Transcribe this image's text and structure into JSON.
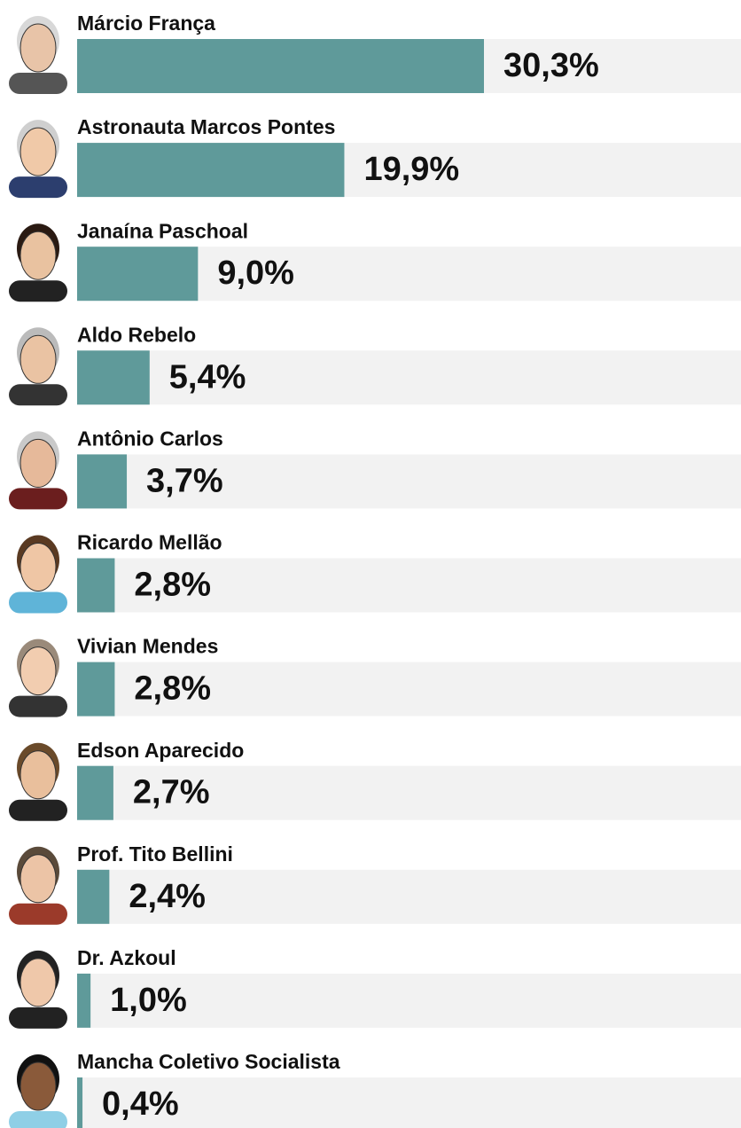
{
  "chart_data": {
    "type": "bar",
    "orientation": "horizontal",
    "categories": [
      "Márcio França",
      "Astronauta Marcos Pontes",
      "Janaína Paschoal",
      "Aldo Rebelo",
      "Antônio Carlos",
      "Ricardo Mellão",
      "Vivian Mendes",
      "Edson Aparecido",
      "Prof. Tito Bellini",
      "Dr. Azkoul",
      "Mancha Coletivo Socialista"
    ],
    "values": [
      30.3,
      19.9,
      9.0,
      5.4,
      3.7,
      2.8,
      2.8,
      2.7,
      2.4,
      1.0,
      0.4
    ],
    "value_labels": [
      "30,3%",
      "19,9%",
      "9,0%",
      "5,4%",
      "3,7%",
      "2,8%",
      "2,8%",
      "2,7%",
      "2,4%",
      "1,0%",
      "0,4%"
    ],
    "color": "#5f9a9a"
  }
}
